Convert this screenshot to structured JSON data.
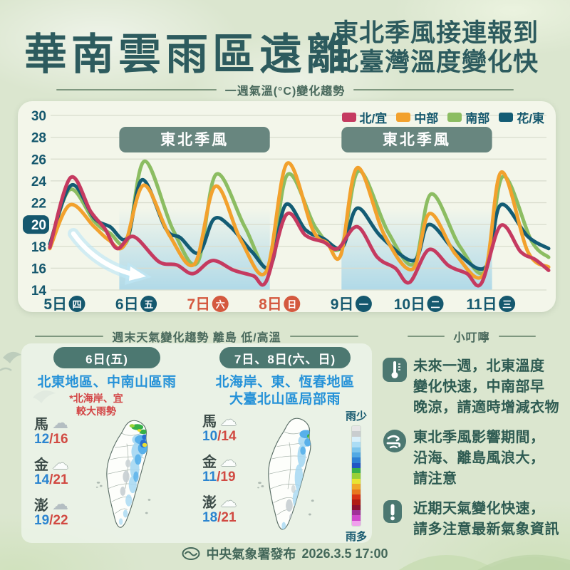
{
  "page": {
    "title_main": "華南雲雨區遠離",
    "title_sub_line1": "東北季風接連報到",
    "title_sub_line2": "北臺灣溫度變化快"
  },
  "chart": {
    "subtitle": "一週氣溫(°C)變化趨勢",
    "chart_data": {
      "type": "line",
      "title": "一週氣溫(°C)變化趨勢",
      "ylabel": "°C",
      "ylim": [
        14,
        30
      ],
      "y_ticks": [
        30,
        28,
        26,
        24,
        22,
        20,
        18,
        16,
        14
      ],
      "highlighted_tick": 20,
      "grid": true,
      "legend_position": "top-right",
      "x_days": [
        {
          "label": "5日",
          "weekday": "四",
          "weekend": false
        },
        {
          "label": "6日",
          "weekday": "五",
          "weekend": false
        },
        {
          "label": "7日",
          "weekday": "六",
          "weekend": true
        },
        {
          "label": "8日",
          "weekday": "日",
          "weekend": true
        },
        {
          "label": "9日",
          "weekday": "一",
          "weekend": false
        },
        {
          "label": "10日",
          "weekday": "二",
          "weekend": false
        },
        {
          "label": "11日",
          "weekday": "三",
          "weekend": false
        }
      ],
      "monsoon_periods": [
        {
          "label": "東北季風",
          "from_day": 0.75,
          "to_day": 2.85
        },
        {
          "label": "東北季風",
          "from_day": 3.85,
          "to_day": 5.95
        }
      ],
      "trend_annotation": "temperature-drop-arrow",
      "series": [
        {
          "name": "北/宜",
          "color": "#c53a60",
          "points": [
            [
              -0.22,
              17.9
            ],
            [
              0.07,
              24.3
            ],
            [
              0.35,
              21.2
            ],
            [
              0.55,
              19.6
            ],
            [
              0.72,
              17.8
            ],
            [
              0.95,
              18.9
            ],
            [
              1.3,
              16.6
            ],
            [
              1.55,
              16.3
            ],
            [
              1.78,
              15.5
            ],
            [
              2.05,
              16.7
            ],
            [
              2.35,
              15.8
            ],
            [
              2.62,
              15.3
            ],
            [
              2.8,
              14.8
            ],
            [
              3.08,
              20.9
            ],
            [
              3.35,
              19.0
            ],
            [
              3.6,
              18.4
            ],
            [
              3.8,
              17.8
            ],
            [
              4.07,
              19.8
            ],
            [
              4.35,
              17.0
            ],
            [
              4.6,
              16.0
            ],
            [
              4.8,
              14.7
            ],
            [
              5.07,
              17.7
            ],
            [
              5.35,
              16.2
            ],
            [
              5.6,
              15.5
            ],
            [
              5.8,
              14.6
            ],
            [
              6.07,
              19.9
            ],
            [
              6.35,
              17.5
            ],
            [
              6.55,
              16.8
            ],
            [
              6.74,
              15.8
            ]
          ]
        },
        {
          "name": "中部",
          "color": "#f2a12d",
          "points": [
            [
              -0.22,
              17.8
            ],
            [
              0.06,
              21.8
            ],
            [
              0.4,
              19.8
            ],
            [
              0.6,
              18.6
            ],
            [
              0.82,
              18.1
            ],
            [
              1.09,
              23.6
            ],
            [
              1.45,
              19.0
            ],
            [
              1.8,
              16.4
            ],
            [
              2.09,
              23.5
            ],
            [
              2.45,
              18.5
            ],
            [
              2.8,
              15.7
            ],
            [
              3.09,
              25.6
            ],
            [
              3.45,
              19.5
            ],
            [
              3.65,
              18.3
            ],
            [
              3.84,
              17.2
            ],
            [
              4.07,
              25.2
            ],
            [
              4.45,
              19.0
            ],
            [
              4.84,
              15.9
            ],
            [
              5.08,
              21.0
            ],
            [
              5.45,
              17.2
            ],
            [
              5.84,
              15.5
            ],
            [
              6.08,
              24.8
            ],
            [
              6.45,
              17.5
            ],
            [
              6.74,
              16.1
            ]
          ]
        },
        {
          "name": "南部",
          "color": "#8cbd62",
          "points": [
            [
              -0.22,
              18.0
            ],
            [
              0.06,
              23.2
            ],
            [
              0.4,
              20.3
            ],
            [
              0.62,
              19.2
            ],
            [
              0.86,
              18.5
            ],
            [
              1.1,
              25.8
            ],
            [
              1.5,
              19.5
            ],
            [
              1.84,
              16.5
            ],
            [
              2.1,
              24.6
            ],
            [
              2.5,
              19.8
            ],
            [
              2.84,
              16.1
            ],
            [
              3.1,
              24.6
            ],
            [
              3.5,
              19.6
            ],
            [
              3.84,
              17.9
            ],
            [
              4.09,
              24.9
            ],
            [
              4.5,
              19.3
            ],
            [
              4.86,
              16.4
            ],
            [
              5.1,
              22.8
            ],
            [
              5.5,
              18.0
            ],
            [
              5.86,
              15.8
            ],
            [
              6.1,
              24.4
            ],
            [
              6.5,
              18.5
            ],
            [
              6.74,
              17.0
            ]
          ]
        },
        {
          "name": "花/東",
          "color": "#135c74",
          "points": [
            [
              -0.22,
              18.2
            ],
            [
              0.08,
              23.6
            ],
            [
              0.4,
              20.6
            ],
            [
              0.62,
              19.8
            ],
            [
              0.86,
              18.8
            ],
            [
              1.07,
              24.1
            ],
            [
              1.4,
              19.6
            ],
            [
              1.6,
              18.8
            ],
            [
              1.86,
              17.4
            ],
            [
              2.07,
              20.5
            ],
            [
              2.3,
              19.8
            ],
            [
              2.6,
              17.5
            ],
            [
              2.86,
              16.2
            ],
            [
              3.07,
              21.8
            ],
            [
              3.35,
              19.5
            ],
            [
              3.6,
              18.7
            ],
            [
              3.86,
              17.9
            ],
            [
              4.07,
              21.5
            ],
            [
              4.4,
              18.9
            ],
            [
              4.86,
              16.7
            ],
            [
              5.07,
              20.0
            ],
            [
              5.45,
              17.5
            ],
            [
              5.86,
              16.1
            ],
            [
              6.07,
              21.8
            ],
            [
              6.45,
              18.9
            ],
            [
              6.74,
              17.8
            ]
          ]
        }
      ]
    }
  },
  "weekend": {
    "header": "週末天氣變化趨勢 離島 低/高溫",
    "panels": [
      {
        "date_pill": "6日(五)",
        "headline": "北東地區、中南山區雨",
        "note_line1": "*北海岸、宜",
        "note_line2": "較大雨勢",
        "islands": [
          {
            "name": "馬",
            "icon": "cloud-gray-icon",
            "low": "12",
            "high": "16"
          },
          {
            "name": "金",
            "icon": "cloud-white-icon",
            "low": "14",
            "high": "21"
          },
          {
            "name": "澎",
            "icon": "cloud-gray-icon",
            "low": "19",
            "high": "22"
          }
        ]
      },
      {
        "date_pill": "7日、8日(六、日)",
        "headline": "北海岸、東、恆春地區",
        "headline2": "大臺北山區局部雨",
        "islands": [
          {
            "name": "馬",
            "icon": "cloud-white-icon",
            "low": "10",
            "high": "14"
          },
          {
            "name": "金",
            "icon": "cloud-white-icon",
            "low": "11",
            "high": "19"
          },
          {
            "name": "澎",
            "icon": "cloud-white-icon",
            "low": "18",
            "high": "21"
          }
        ]
      }
    ],
    "rain_scale": {
      "less_label": "雨少",
      "more_label": "雨多",
      "colors": [
        "#e6e6e6",
        "#c9cdcf",
        "#d9f0fa",
        "#abddf5",
        "#7dc5ec",
        "#51a9e4",
        "#2d80d4",
        "#2155c4",
        "#39b04c",
        "#99d038",
        "#e8e432",
        "#f0a828",
        "#e87820",
        "#d83418",
        "#b01c14",
        "#8c1030",
        "#a03098",
        "#d048cc",
        "#f0a0ec"
      ]
    }
  },
  "tips": {
    "header": "小叮嚀",
    "items": [
      {
        "icon": "thermometer-icon",
        "lines": [
          "未來一週，北東溫度",
          "變化快速，中南部早",
          "晚涼，請適時增減衣物"
        ]
      },
      {
        "icon": "wind-icon",
        "lines": [
          "東北季風影響期間，",
          "沿海、離島風浪大，",
          "請注意"
        ]
      },
      {
        "icon": "alert-icon",
        "lines": [
          "近期天氣變化快速，",
          "請多注意最新氣象資訊"
        ]
      }
    ]
  },
  "footer": {
    "agency": "中央氣象署發布",
    "datetime": "2026.3.5 17:00"
  },
  "colors": {
    "accent_dark_teal": "#15586e",
    "weekend_red": "#d4593f",
    "monsoon_box": "#68867f",
    "pill_teal": "#4c7871",
    "headline_blue": "#2592d8",
    "note_red": "#d34545",
    "band_blue": "#add8e8"
  }
}
